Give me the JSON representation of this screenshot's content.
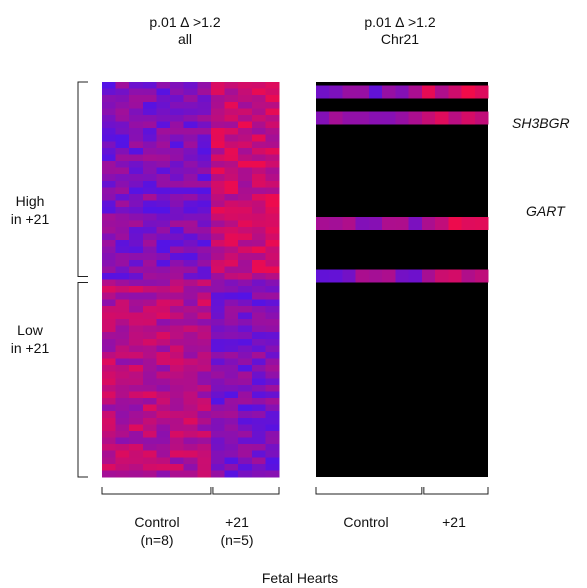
{
  "panels": [
    {
      "title_line1": "p.01  ∆ >1.2",
      "title_line2": "all",
      "group_labels": [
        {
          "text": "Control",
          "sub": "(n=8)"
        },
        {
          "text": "+21",
          "sub": "(n=5)"
        }
      ]
    },
    {
      "title_line1": "p.01  ∆ >1.2",
      "title_line2": "Chr21",
      "group_labels": [
        {
          "text": "Control",
          "sub": ""
        },
        {
          "text": "+21",
          "sub": ""
        }
      ]
    }
  ],
  "row_groups": [
    {
      "line1": "High",
      "line2": "in +21"
    },
    {
      "line1": "Low",
      "line2": "in +21"
    }
  ],
  "genes": [
    "SH3BGR",
    "GART"
  ],
  "footer": "Fetal Hearts",
  "chart_data": {
    "type": "heatmap",
    "columns_control": 8,
    "columns_trisomy21": 5,
    "rows_total": 60,
    "rows_high": 30,
    "rows_low": 30,
    "chr21_rows": [
      1,
      5,
      21,
      29
    ],
    "chr21_gene_labels": {
      "5": "SH3BGR",
      "21": "GART"
    },
    "colors": {
      "high": "#ff0a3c",
      "low": "#3a14ff",
      "background": "#000000"
    }
  }
}
